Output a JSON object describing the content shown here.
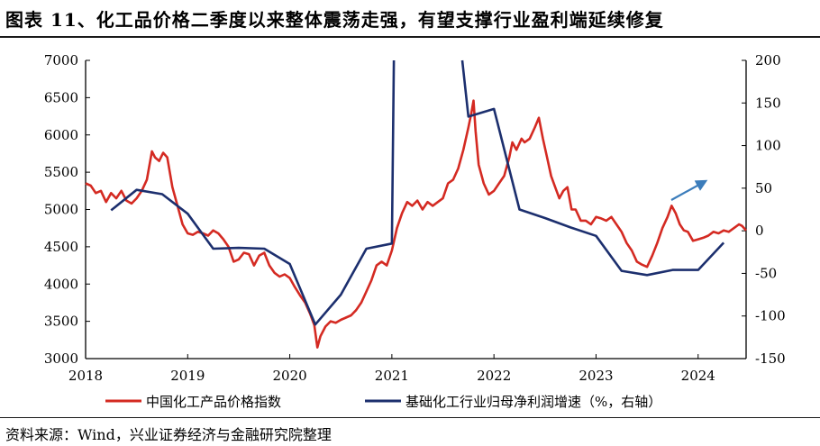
{
  "title": "图表 11、化工品价格二季度以来整体震荡走强，有望支撑行业盈利端延续修复",
  "source": "资料来源：Wind，兴业证券经济与金融研究院整理",
  "colors": {
    "price": "#d42a22",
    "growth": "#1c2f6e",
    "arrow": "#3c7dbb",
    "axis": "#000000"
  },
  "chart_data": {
    "type": "line",
    "x_ticks": [
      "2018",
      "2019",
      "2020",
      "2021",
      "2022",
      "2023",
      "2024"
    ],
    "x_range": [
      2018.0,
      2024.47
    ],
    "y_left": {
      "range": [
        3000,
        7000
      ],
      "ticks": [
        "7000",
        "6500",
        "6000",
        "5500",
        "5000",
        "4500",
        "4000",
        "3500",
        "3000"
      ]
    },
    "y_right": {
      "range": [
        -150,
        200
      ],
      "ticks": [
        "200",
        "150",
        "100",
        "50",
        "0",
        "-50",
        "-100",
        "-150"
      ]
    },
    "series": [
      {
        "name": "中国化工产品价格指数",
        "axis": "left",
        "points": [
          [
            2018.0,
            5350
          ],
          [
            2018.05,
            5320
          ],
          [
            2018.1,
            5220
          ],
          [
            2018.15,
            5250
          ],
          [
            2018.2,
            5100
          ],
          [
            2018.25,
            5220
          ],
          [
            2018.3,
            5150
          ],
          [
            2018.35,
            5250
          ],
          [
            2018.4,
            5120
          ],
          [
            2018.45,
            5080
          ],
          [
            2018.5,
            5150
          ],
          [
            2018.55,
            5250
          ],
          [
            2018.6,
            5400
          ],
          [
            2018.65,
            5780
          ],
          [
            2018.68,
            5700
          ],
          [
            2018.72,
            5650
          ],
          [
            2018.76,
            5760
          ],
          [
            2018.8,
            5700
          ],
          [
            2018.85,
            5300
          ],
          [
            2018.9,
            5050
          ],
          [
            2018.95,
            4800
          ],
          [
            2019.0,
            4680
          ],
          [
            2019.05,
            4660
          ],
          [
            2019.1,
            4700
          ],
          [
            2019.15,
            4680
          ],
          [
            2019.2,
            4650
          ],
          [
            2019.25,
            4720
          ],
          [
            2019.3,
            4680
          ],
          [
            2019.35,
            4600
          ],
          [
            2019.4,
            4500
          ],
          [
            2019.45,
            4300
          ],
          [
            2019.5,
            4330
          ],
          [
            2019.55,
            4420
          ],
          [
            2019.6,
            4400
          ],
          [
            2019.65,
            4250
          ],
          [
            2019.7,
            4380
          ],
          [
            2019.75,
            4420
          ],
          [
            2019.8,
            4250
          ],
          [
            2019.85,
            4150
          ],
          [
            2019.9,
            4100
          ],
          [
            2019.95,
            4130
          ],
          [
            2020.0,
            4080
          ],
          [
            2020.05,
            3960
          ],
          [
            2020.1,
            3850
          ],
          [
            2020.15,
            3750
          ],
          [
            2020.2,
            3600
          ],
          [
            2020.24,
            3450
          ],
          [
            2020.27,
            3150
          ],
          [
            2020.3,
            3300
          ],
          [
            2020.35,
            3430
          ],
          [
            2020.4,
            3500
          ],
          [
            2020.45,
            3480
          ],
          [
            2020.5,
            3520
          ],
          [
            2020.55,
            3550
          ],
          [
            2020.6,
            3580
          ],
          [
            2020.65,
            3650
          ],
          [
            2020.7,
            3750
          ],
          [
            2020.75,
            3900
          ],
          [
            2020.8,
            4050
          ],
          [
            2020.85,
            4250
          ],
          [
            2020.9,
            4300
          ],
          [
            2020.95,
            4250
          ],
          [
            2021.0,
            4450
          ],
          [
            2021.05,
            4750
          ],
          [
            2021.1,
            4950
          ],
          [
            2021.15,
            5100
          ],
          [
            2021.2,
            5050
          ],
          [
            2021.25,
            5120
          ],
          [
            2021.3,
            5000
          ],
          [
            2021.35,
            5100
          ],
          [
            2021.4,
            5050
          ],
          [
            2021.45,
            5100
          ],
          [
            2021.5,
            5150
          ],
          [
            2021.55,
            5350
          ],
          [
            2021.6,
            5400
          ],
          [
            2021.65,
            5550
          ],
          [
            2021.7,
            5800
          ],
          [
            2021.75,
            6100
          ],
          [
            2021.78,
            6300
          ],
          [
            2021.8,
            6460
          ],
          [
            2021.82,
            6050
          ],
          [
            2021.85,
            5600
          ],
          [
            2021.9,
            5350
          ],
          [
            2021.95,
            5200
          ],
          [
            2022.0,
            5250
          ],
          [
            2022.05,
            5350
          ],
          [
            2022.1,
            5450
          ],
          [
            2022.15,
            5700
          ],
          [
            2022.18,
            5900
          ],
          [
            2022.22,
            5800
          ],
          [
            2022.27,
            5950
          ],
          [
            2022.3,
            5900
          ],
          [
            2022.35,
            5950
          ],
          [
            2022.4,
            6100
          ],
          [
            2022.44,
            6230
          ],
          [
            2022.48,
            5950
          ],
          [
            2022.52,
            5700
          ],
          [
            2022.56,
            5450
          ],
          [
            2022.6,
            5300
          ],
          [
            2022.64,
            5150
          ],
          [
            2022.68,
            5250
          ],
          [
            2022.72,
            5300
          ],
          [
            2022.76,
            5000
          ],
          [
            2022.8,
            5000
          ],
          [
            2022.85,
            4850
          ],
          [
            2022.9,
            4850
          ],
          [
            2022.95,
            4800
          ],
          [
            2023.0,
            4900
          ],
          [
            2023.05,
            4880
          ],
          [
            2023.1,
            4850
          ],
          [
            2023.15,
            4900
          ],
          [
            2023.2,
            4800
          ],
          [
            2023.25,
            4700
          ],
          [
            2023.3,
            4550
          ],
          [
            2023.35,
            4450
          ],
          [
            2023.4,
            4300
          ],
          [
            2023.45,
            4260
          ],
          [
            2023.5,
            4230
          ],
          [
            2023.55,
            4380
          ],
          [
            2023.6,
            4550
          ],
          [
            2023.65,
            4750
          ],
          [
            2023.7,
            4900
          ],
          [
            2023.74,
            5050
          ],
          [
            2023.78,
            4950
          ],
          [
            2023.82,
            4800
          ],
          [
            2023.86,
            4720
          ],
          [
            2023.9,
            4700
          ],
          [
            2023.95,
            4580
          ],
          [
            2024.0,
            4600
          ],
          [
            2024.05,
            4620
          ],
          [
            2024.1,
            4650
          ],
          [
            2024.15,
            4700
          ],
          [
            2024.2,
            4680
          ],
          [
            2024.25,
            4720
          ],
          [
            2024.3,
            4700
          ],
          [
            2024.35,
            4750
          ],
          [
            2024.4,
            4800
          ],
          [
            2024.43,
            4780
          ],
          [
            2024.47,
            4720
          ]
        ]
      },
      {
        "name": "基础化工行业归母净利润增速（%，右轴）",
        "axis": "right",
        "points": [
          [
            2018.25,
            24
          ],
          [
            2018.5,
            48
          ],
          [
            2018.75,
            43
          ],
          [
            2019.0,
            20
          ],
          [
            2019.25,
            -21
          ],
          [
            2019.5,
            -20
          ],
          [
            2019.75,
            -21
          ],
          [
            2020.0,
            -39
          ],
          [
            2020.25,
            -110
          ],
          [
            2020.5,
            -75
          ],
          [
            2020.75,
            -21
          ],
          [
            2021.0,
            -15
          ],
          [
            2021.02,
            200
          ],
          null,
          [
            2021.69,
            200
          ],
          [
            2021.75,
            134
          ],
          [
            2022.0,
            143
          ],
          [
            2022.25,
            25
          ],
          [
            2022.5,
            15
          ],
          [
            2022.75,
            4
          ],
          [
            2023.0,
            -6
          ],
          [
            2023.25,
            -47
          ],
          [
            2023.5,
            -52
          ],
          [
            2023.75,
            -46
          ],
          [
            2024.0,
            -46
          ],
          [
            2024.25,
            -14
          ]
        ]
      }
    ],
    "annotation": "upward-arrow"
  }
}
